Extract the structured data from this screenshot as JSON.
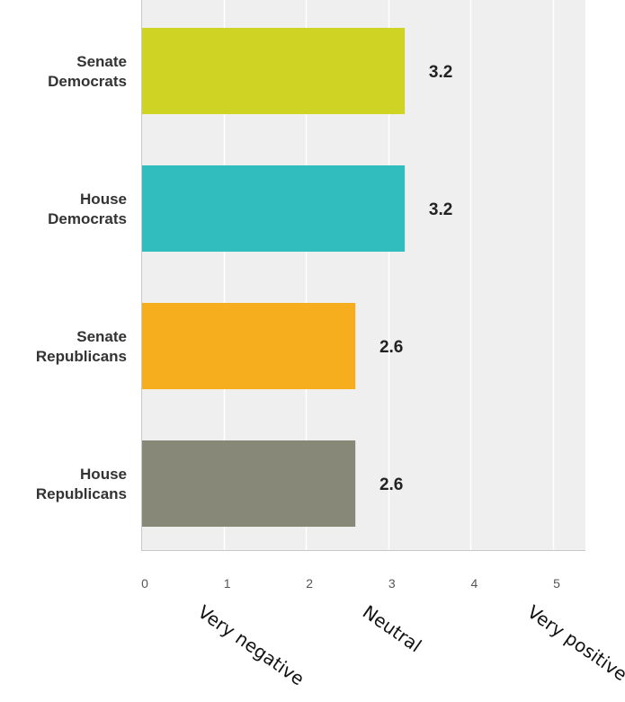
{
  "chart_data": {
    "type": "bar",
    "orientation": "horizontal",
    "categories": [
      [
        "Senate",
        "Democrats"
      ],
      [
        "House",
        "Democrats"
      ],
      [
        "Senate",
        "Republicans"
      ],
      [
        "House",
        "Republicans"
      ]
    ],
    "values": [
      3.2,
      3.2,
      2.6,
      2.6
    ],
    "value_labels": [
      "3.2",
      "3.2",
      "2.6",
      "2.6"
    ],
    "colors": [
      "#cfd424",
      "#31bdbe",
      "#f6ae1e",
      "#878877"
    ],
    "xlim": [
      0,
      5.4
    ],
    "ticks": [
      0,
      1,
      2,
      3,
      4,
      5
    ],
    "tick_labels": [
      "0",
      "1",
      "2",
      "3",
      "4",
      "5"
    ],
    "grid": true,
    "annotations": [
      {
        "text": "Very negative",
        "x": 1
      },
      {
        "text": "Neutral",
        "x": 3
      },
      {
        "text": "Very positive",
        "x": 5
      }
    ],
    "title": "",
    "xlabel": "",
    "ylabel": ""
  },
  "style": {
    "plot_background": "#efefef",
    "grid_color": "#ffffff",
    "axis_color": "#c8c8c8"
  }
}
